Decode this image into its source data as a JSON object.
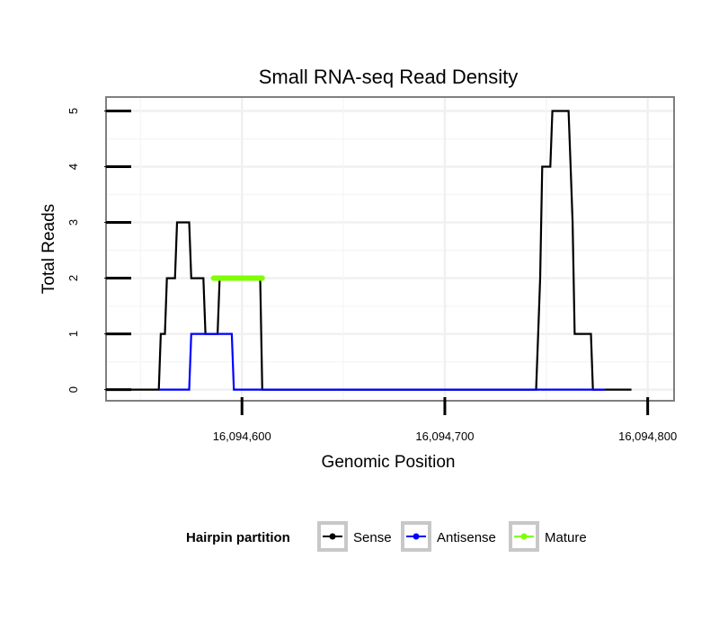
{
  "chart_data": {
    "type": "line",
    "title": "Small RNA-seq Read Density",
    "xlabel": "Genomic Position",
    "ylabel": "Total Reads",
    "xlim": [
      16094533,
      16094813
    ],
    "ylim": [
      -0.2,
      5.25
    ],
    "x_ticks": [
      16094600,
      16094700,
      16094800
    ],
    "x_tick_labels": [
      "16,094,600",
      "16,094,700",
      "16,094,800"
    ],
    "y_ticks": [
      0,
      1,
      2,
      3,
      4,
      5
    ],
    "y_tick_labels": [
      "0",
      "1",
      "2",
      "3",
      "4",
      "5"
    ],
    "grid": true,
    "legend": {
      "title": "Hairpin partition",
      "position": "bottom"
    },
    "series": [
      {
        "name": "Sense",
        "color": "#000000",
        "step_values": [
          [
            16094545,
            0
          ],
          [
            16094559,
            0
          ],
          [
            16094560,
            1
          ],
          [
            16094562,
            1
          ],
          [
            16094563,
            2
          ],
          [
            16094567,
            2
          ],
          [
            16094568,
            3
          ],
          [
            16094574,
            3
          ],
          [
            16094575,
            2
          ],
          [
            16094581,
            2
          ],
          [
            16094582,
            1
          ],
          [
            16094588,
            1
          ],
          [
            16094589,
            2
          ],
          [
            16094609,
            2
          ],
          [
            16094610,
            0
          ],
          [
            16094745,
            0
          ],
          [
            16094746,
            1
          ],
          [
            16094747,
            2
          ],
          [
            16094748,
            4
          ],
          [
            16094752,
            4
          ],
          [
            16094753,
            5
          ],
          [
            16094761,
            5
          ],
          [
            16094762,
            4
          ],
          [
            16094763,
            3
          ],
          [
            16094764,
            1
          ],
          [
            16094772,
            1
          ],
          [
            16094773,
            0
          ],
          [
            16094792,
            0
          ]
        ]
      },
      {
        "name": "Antisense",
        "color": "#0000ff",
        "step_values": [
          [
            16094559,
            0
          ],
          [
            16094574,
            0
          ],
          [
            16094575,
            1
          ],
          [
            16094595,
            1
          ],
          [
            16094596,
            0
          ],
          [
            16094610,
            0
          ],
          [
            16094745,
            0
          ],
          [
            16094779,
            0
          ]
        ]
      },
      {
        "name": "Mature",
        "color": "#7fff00",
        "segment": {
          "x_start": 16094586,
          "x_end": 16094610,
          "value": 2
        }
      }
    ]
  }
}
